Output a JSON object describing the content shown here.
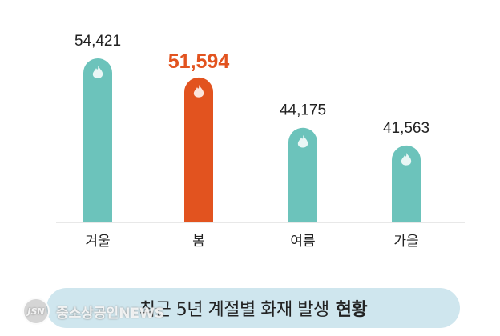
{
  "chart_data": {
    "type": "bar",
    "categories": [
      "겨울",
      "봄",
      "여름",
      "가을"
    ],
    "values": [
      54421,
      51594,
      44175,
      41563
    ],
    "value_labels": [
      "54,421",
      "51,594",
      "44,175",
      "41,563"
    ],
    "highlight_index": 1,
    "title_main": "최근 5년 계절별 화재 발생",
    "title_bold": "현황",
    "ylim": [
      30200,
      55000
    ],
    "grid": false,
    "colors": {
      "default": "#6cc3bb",
      "highlight": "#e2531f",
      "icon": "#ffffff"
    },
    "bar_icon": "flame-icon"
  },
  "watermark": {
    "logo": "JSN",
    "text": "중소상공인NEWS"
  }
}
